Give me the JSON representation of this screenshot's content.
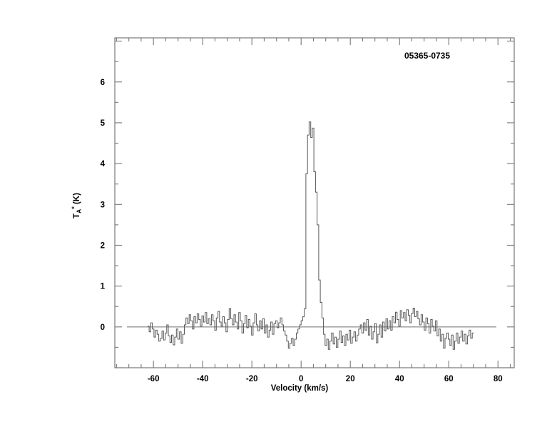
{
  "chart_data": {
    "type": "line",
    "style": "histogram-step-spectrum",
    "title": "05365-0735",
    "xlabel": "Velocity (km/s)",
    "ylabel": "TA* (K)",
    "ylabel_parts": {
      "base": "T",
      "sub": "A",
      "sup": "*",
      "rest": " (K)"
    },
    "xlim": [
      -75.7,
      86.6
    ],
    "ylim": [
      -1.0,
      7.08
    ],
    "x_major_ticks": [
      -60,
      -40,
      -20,
      0,
      20,
      40,
      60,
      80
    ],
    "x_minor_step": 5,
    "y_labeled_ticks": [
      0,
      1,
      2,
      3,
      4,
      5,
      6
    ],
    "y_major_step": 1,
    "y_minor_step": 0.5,
    "grid": false,
    "legend": "none",
    "zero_line": true,
    "line_peak": {
      "velocity_kms": 3.6,
      "peak_K": 5.02,
      "secondary_peak_K": 4.87
    },
    "series": [
      {
        "name": "spectrum",
        "v_start": -62.4,
        "dv": 0.65,
        "values": [
          0.02,
          -0.12,
          0.1,
          -0.05,
          -0.25,
          -0.08,
          -0.18,
          -0.35,
          -0.28,
          -0.1,
          -0.32,
          -0.15,
          0.05,
          -0.22,
          -0.38,
          -0.2,
          -0.44,
          -0.25,
          -0.05,
          -0.3,
          -0.12,
          -0.4,
          -0.18,
          0.05,
          0.22,
          0.08,
          0.3,
          0.15,
          -0.05,
          0.25,
          0.1,
          0.32,
          0.18,
          0.02,
          0.27,
          0.12,
          0.35,
          0.08,
          0.2,
          0.05,
          0.3,
          0.15,
          -0.08,
          0.22,
          0.38,
          0.12,
          0.02,
          0.25,
          0.1,
          -0.12,
          0.18,
          0.45,
          0.2,
          0.05,
          0.3,
          0.12,
          -0.05,
          0.35,
          0.15,
          -0.15,
          0.08,
          0.28,
          -0.02,
          0.18,
          0.02,
          -0.2,
          0.1,
          0.32,
          0.05,
          -0.1,
          0.15,
          -0.05,
          0.2,
          -0.15,
          0.05,
          -0.25,
          -0.08,
          0.12,
          -0.18,
          0.08,
          0.15,
          -0.02,
          0.1,
          0.22,
          0.05,
          -0.1,
          -0.2,
          -0.35,
          -0.52,
          -0.4,
          -0.28,
          -0.45,
          -0.3,
          -0.15,
          -0.05,
          0.05,
          0.15,
          0.25,
          0.45,
          3.75,
          4.7,
          5.02,
          4.64,
          4.87,
          3.8,
          3.3,
          2.5,
          1.15,
          0.6,
          0.22,
          -0.18,
          -0.45,
          -0.3,
          -0.55,
          -0.35,
          -0.15,
          -0.42,
          -0.25,
          -0.5,
          -0.3,
          -0.1,
          -0.38,
          -0.22,
          -0.45,
          -0.18,
          -0.32,
          -0.08,
          -0.4,
          -0.25,
          -0.12,
          -0.35,
          -0.2,
          -0.05,
          0.05,
          -0.15,
          0.1,
          -0.08,
          0.18,
          -0.2,
          0.02,
          -0.3,
          -0.12,
          0.08,
          -0.39,
          -0.18,
          0.05,
          -0.25,
          0.12,
          -0.1,
          0.2,
          -0.05,
          0.15,
          -0.08,
          0.25,
          0.1,
          0.36,
          0.18,
          0.02,
          0.4,
          0.22,
          0.35,
          0.15,
          0.42,
          0.28,
          0.1,
          0.33,
          0.46,
          0.25,
          0.38,
          0.2,
          0.05,
          0.3,
          0.12,
          -0.08,
          0.22,
          0.08,
          -0.15,
          0.18,
          0.02,
          -0.1,
          0.15,
          -0.22,
          -0.05,
          -0.35,
          -0.18,
          -0.52,
          -0.28,
          -0.15,
          -0.3,
          -0.45,
          -0.2,
          -0.55,
          -0.35,
          -0.15,
          -0.4,
          -0.25,
          -0.1,
          -0.35,
          -0.18,
          -0.42,
          -0.22,
          -0.08,
          -0.28,
          -0.15
        ]
      }
    ],
    "colors": {
      "background": "#ffffff",
      "axis": "#787878",
      "trace": "#585858",
      "zero_line": "#6f6f6f",
      "text": "#000000"
    }
  }
}
